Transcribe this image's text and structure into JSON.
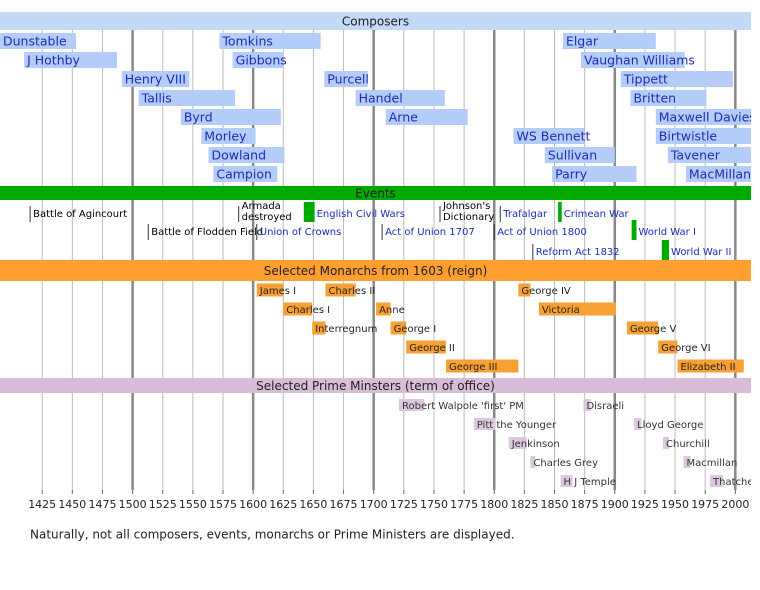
{
  "chart_data": {
    "type": "timeline",
    "xlim": [
      1390,
      2013
    ],
    "xticks": [
      1425,
      1450,
      1475,
      1500,
      1525,
      1550,
      1575,
      1600,
      1625,
      1650,
      1675,
      1700,
      1725,
      1750,
      1775,
      1800,
      1825,
      1850,
      1875,
      1900,
      1925,
      1950,
      1975,
      2000
    ],
    "grid": true,
    "footnote": "Naturally, not all composers, events, monarchs or Prime Ministers are displayed.",
    "groups": [
      {
        "title": "Composers",
        "color": "#c4d8f8",
        "bar_color": "#b4ccf8",
        "label_color": "#1c2cb8",
        "rows": [
          [
            {
              "label": "Dunstable",
              "start": 1390,
              "end": 1453
            },
            {
              "label": "Tomkins",
              "start": 1572,
              "end": 1656
            },
            {
              "label": "Elgar",
              "start": 1857,
              "end": 1934
            }
          ],
          [
            {
              "label": "J Hothby",
              "start": 1410,
              "end": 1487
            },
            {
              "label": "Gibbons",
              "start": 1583,
              "end": 1625
            },
            {
              "label": "Vaughan Williams",
              "start": 1872,
              "end": 1958
            }
          ],
          [
            {
              "label": "Henry VIII",
              "start": 1491,
              "end": 1547
            },
            {
              "label": "Purcell",
              "start": 1659,
              "end": 1695
            },
            {
              "label": "Tippett",
              "start": 1905,
              "end": 1998
            }
          ],
          [
            {
              "label": "Tallis",
              "start": 1505,
              "end": 1585
            },
            {
              "label": "Handel",
              "start": 1685,
              "end": 1759
            },
            {
              "label": "Britten",
              "start": 1913,
              "end": 1976
            }
          ],
          [
            {
              "label": "Byrd",
              "start": 1540,
              "end": 1623
            },
            {
              "label": "Arne",
              "start": 1710,
              "end": 1778
            },
            {
              "label": "Maxwell Davies",
              "start": 1934,
              "end": 2013
            }
          ],
          [
            {
              "label": "Morley",
              "start": 1557,
              "end": 1602
            },
            {
              "label": "WS Bennett",
              "start": 1816,
              "end": 1875
            },
            {
              "label": "Birtwistle",
              "start": 1934,
              "end": 2013
            }
          ],
          [
            {
              "label": "Dowland",
              "start": 1563,
              "end": 1626
            },
            {
              "label": "Sullivan",
              "start": 1842,
              "end": 1900
            },
            {
              "label": "Tavener",
              "start": 1944,
              "end": 2013
            }
          ],
          [
            {
              "label": "Campion",
              "start": 1567,
              "end": 1620
            },
            {
              "label": "Parry",
              "start": 1848,
              "end": 1918
            },
            {
              "label": "MacMillan",
              "start": 1959,
              "end": 2013
            }
          ]
        ]
      },
      {
        "title": "Events",
        "color": "#00aa00",
        "bar_color": "#00aa00",
        "label_color": "#000000",
        "rows": [
          [
            {
              "label": [
                "Battle of Agincourt"
              ],
              "year": 1415
            },
            {
              "label": [
                "Armada",
                "destroyed"
              ],
              "year": 1588
            },
            {
              "label": [
                "English Civil Wars"
              ],
              "start": 1642,
              "end": 1651,
              "color": "#1c2cb8"
            },
            {
              "label": [
                "Johnson's",
                "Dictionary"
              ],
              "year": 1755
            },
            {
              "label": [
                "Trafalgar"
              ],
              "year": 1805,
              "color": "#1c2cb8"
            },
            {
              "label": [
                "Crimean War"
              ],
              "start": 1853,
              "end": 1856,
              "color": "#1c2cb8"
            }
          ],
          [
            {
              "label": [
                "Battle of Flodden Field"
              ],
              "year": 1513
            },
            {
              "label": [
                "Union of Crowns"
              ],
              "year": 1603,
              "color": "#1c2cb8"
            },
            {
              "label": [
                "Act of Union 1707"
              ],
              "year": 1707,
              "color": "#1c2cb8"
            },
            {
              "label": [
                "Act of Union 1800"
              ],
              "year": 1800,
              "color": "#1c2cb8"
            },
            {
              "label": [
                "World War I"
              ],
              "start": 1914,
              "end": 1918,
              "color": "#1c2cb8"
            }
          ],
          [
            {
              "label": [
                "Reform Act 1832"
              ],
              "year": 1832,
              "color": "#1c2cb8"
            },
            {
              "label": [
                "World War II"
              ],
              "start": 1939,
              "end": 1945,
              "color": "#1c2cb8"
            }
          ]
        ]
      },
      {
        "title": "Selected Monarchs from 1603 (reign)",
        "color": "#ff9f30",
        "bar_color": "#f8a033",
        "label_color": "#222222",
        "rows": [
          [
            {
              "label": "James I",
              "start": 1603,
              "end": 1625
            },
            {
              "label": "Charles II",
              "start": 1660,
              "end": 1685
            },
            {
              "label": "George IV",
              "start": 1820,
              "end": 1830
            }
          ],
          [
            {
              "label": "Charles I",
              "start": 1625,
              "end": 1649
            },
            {
              "label": "Anne",
              "start": 1702,
              "end": 1714
            },
            {
              "label": "Victoria",
              "start": 1837,
              "end": 1901
            }
          ],
          [
            {
              "label": "Interregnum",
              "start": 1649,
              "end": 1660
            },
            {
              "label": "George I",
              "start": 1714,
              "end": 1727
            },
            {
              "label": "George V",
              "start": 1910,
              "end": 1936
            }
          ],
          [
            {
              "label": "George II",
              "start": 1727,
              "end": 1760
            },
            {
              "label": "George VI",
              "start": 1936,
              "end": 1952
            }
          ],
          [
            {
              "label": "George III",
              "start": 1760,
              "end": 1820
            },
            {
              "label": "Elizabeth II",
              "start": 1952,
              "end": 2007
            }
          ]
        ]
      },
      {
        "title": "Selected Prime Minsters (term of office)",
        "color": "#d8bcd8",
        "bar_color": "#dcc8dc",
        "label_color": "#333333",
        "rows": [
          [
            {
              "label": "Robert Walpole 'first' PM",
              "start": 1721,
              "end": 1742
            },
            {
              "label": "Disraeli",
              "start": 1874,
              "end": 1880
            }
          ],
          [
            {
              "label": "Pitt the Younger",
              "start": 1783,
              "end": 1801
            },
            {
              "label": "Lloyd George",
              "start": 1916,
              "end": 1922
            }
          ],
          [
            {
              "label": "Jenkinson",
              "start": 1812,
              "end": 1827
            },
            {
              "label": "Churchill",
              "start": 1940,
              "end": 1945
            }
          ],
          [
            {
              "label": "Charles Grey",
              "start": 1830,
              "end": 1834
            },
            {
              "label": "Macmillan",
              "start": 1957,
              "end": 1963
            }
          ],
          [
            {
              "label": "H J Temple",
              "start": 1855,
              "end": 1865
            },
            {
              "label": "Thatcher",
              "start": 1979,
              "end": 1990
            }
          ]
        ]
      }
    ]
  }
}
